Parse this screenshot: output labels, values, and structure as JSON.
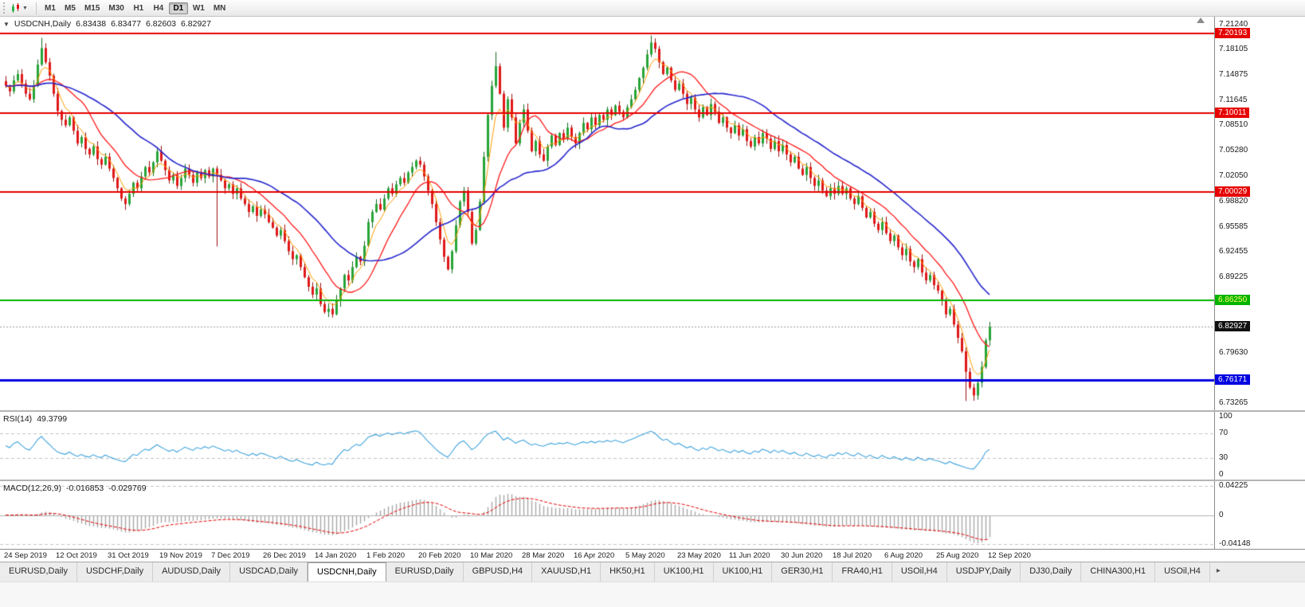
{
  "toolbar": {
    "timeframes": [
      {
        "label": "M1",
        "active": false
      },
      {
        "label": "M5",
        "active": false
      },
      {
        "label": "M15",
        "active": false
      },
      {
        "label": "M30",
        "active": false
      },
      {
        "label": "H1",
        "active": false
      },
      {
        "label": "H4",
        "active": false
      },
      {
        "label": "D1",
        "active": true
      },
      {
        "label": "W1",
        "active": false
      },
      {
        "label": "MN",
        "active": false
      }
    ]
  },
  "chart_header": {
    "symbol": "USDCNH,Daily",
    "open": "6.83438",
    "high": "6.83477",
    "low": "6.82603",
    "close": "6.82927"
  },
  "price_axis_labels": [
    "7.21240",
    "7.18105",
    "7.14875",
    "7.11645",
    "7.08510",
    "7.05280",
    "7.02050",
    "6.98820",
    "6.95585",
    "6.92455",
    "6.89225",
    "6.85995",
    "6.82765",
    "6.79630",
    "6.76400",
    "6.73265"
  ],
  "price_badges": [
    {
      "text": "7.20193",
      "price": 7.20193,
      "bg": "#e60000",
      "fg": "#ffffff"
    },
    {
      "text": "7.10011",
      "price": 7.10011,
      "bg": "#e60000",
      "fg": "#ffffff"
    },
    {
      "text": "7.00029",
      "price": 7.00029,
      "bg": "#e60000",
      "fg": "#ffffff"
    },
    {
      "text": "6.86250",
      "price": 6.8625,
      "bg": "#00b400",
      "fg": "#ffff66"
    },
    {
      "text": "6.82927",
      "price": 6.82927,
      "bg": "#111111",
      "fg": "#ffffff"
    },
    {
      "text": "6.76171",
      "price": 6.76171,
      "bg": "#0000e0",
      "fg": "#ffffff"
    }
  ],
  "chart_data": {
    "type": "candlestick",
    "title": "USDCNH,Daily",
    "symbol": "USDCNH",
    "timeframe": "Daily",
    "ylim": [
      6.7232,
      7.2228
    ],
    "x_tick_labels": [
      "24 Sep 2019",
      "12 Oct 2019",
      "31 Oct 2019",
      "19 Nov 2019",
      "7 Dec 2019",
      "26 Dec 2019",
      "14 Jan 2020",
      "1 Feb 2020",
      "20 Feb 2020",
      "10 Mar 2020",
      "28 Mar 2020",
      "16 Apr 2020",
      "5 May 2020",
      "23 May 2020",
      "11 Jun 2020",
      "30 Jun 2020",
      "18 Jul 2020",
      "6 Aug 2020",
      "25 Aug 2020",
      "12 Sep 2020"
    ],
    "closes": [
      7.135,
      7.128,
      7.142,
      7.15,
      7.138,
      7.125,
      7.118,
      7.135,
      7.162,
      7.183,
      7.165,
      7.148,
      7.125,
      7.103,
      7.092,
      7.085,
      7.095,
      7.078,
      7.062,
      7.07,
      7.055,
      7.048,
      7.058,
      7.042,
      7.035,
      7.045,
      7.03,
      7.018,
      7.005,
      6.992,
      6.985,
      6.998,
      7.012,
      7.005,
      7.02,
      7.032,
      7.025,
      7.038,
      7.052,
      7.04,
      7.028,
      7.015,
      7.022,
      7.008,
      7.018,
      7.03,
      7.022,
      7.012,
      7.025,
      7.018,
      7.028,
      7.02,
      7.03,
      7.022,
      7.015,
      7.005,
      7.01,
      6.998,
      7.005,
      6.992,
      6.985,
      6.975,
      6.982,
      6.97,
      6.978,
      6.972,
      6.962,
      6.955,
      6.945,
      6.952,
      6.938,
      6.925,
      6.915,
      6.92,
      6.905,
      6.892,
      6.88,
      6.87,
      6.878,
      6.858,
      6.848,
      6.852,
      6.845,
      6.862,
      6.878,
      6.895,
      6.888,
      6.905,
      6.918,
      6.912,
      6.932,
      6.962,
      6.975,
      6.985,
      6.978,
      6.992,
      7.005,
      6.998,
      7.01,
      7.018,
      7.012,
      7.025,
      7.032,
      7.04,
      7.035,
      7.02,
      7.002,
      6.985,
      6.962,
      6.94,
      6.918,
      6.902,
      6.925,
      6.958,
      6.988,
      7.002,
      6.975,
      6.935,
      6.952,
      6.988,
      7.045,
      7.098,
      7.135,
      7.16,
      7.125,
      7.082,
      7.118,
      7.095,
      7.062,
      7.088,
      7.105,
      7.078,
      7.052,
      7.065,
      7.048,
      7.04,
      7.058,
      7.072,
      7.06,
      7.075,
      7.068,
      7.082,
      7.07,
      7.062,
      7.075,
      7.088,
      7.08,
      7.095,
      7.085,
      7.098,
      7.092,
      7.105,
      7.098,
      7.11,
      7.102,
      7.095,
      7.108,
      7.118,
      7.13,
      7.145,
      7.158,
      7.175,
      7.19,
      7.182,
      7.165,
      7.15,
      7.158,
      7.142,
      7.13,
      7.138,
      7.125,
      7.112,
      7.12,
      7.105,
      7.095,
      7.108,
      7.098,
      7.112,
      7.102,
      7.088,
      7.095,
      7.082,
      7.075,
      7.085,
      7.072,
      7.08,
      7.065,
      7.058,
      7.07,
      7.062,
      7.075,
      7.068,
      7.055,
      7.065,
      7.052,
      7.06,
      7.048,
      7.038,
      7.045,
      7.03,
      7.022,
      7.032,
      7.018,
      7.008,
      7.015,
      7.002,
      6.995,
      7.005,
      6.998,
      7.008,
      6.998,
      7.005,
      6.992,
      6.985,
      6.995,
      6.98,
      6.968,
      6.975,
      6.96,
      6.952,
      6.962,
      6.948,
      6.938,
      6.945,
      6.93,
      6.92,
      6.928,
      6.912,
      6.905,
      6.915,
      6.898,
      6.888,
      6.895,
      6.882,
      6.875,
      6.862,
      6.845,
      6.852,
      6.832,
      6.815,
      6.798,
      6.772,
      6.752,
      6.742,
      6.758,
      6.778,
      6.812,
      6.829
    ],
    "wick_overrides": [
      {
        "i": 9,
        "high": 7.196
      },
      {
        "i": 53,
        "low": 6.931
      },
      {
        "i": 123,
        "high": 7.178
      },
      {
        "i": 162,
        "high": 7.199
      },
      {
        "i": 241,
        "low": 6.735
      }
    ],
    "horizontal_lines": [
      {
        "price": 7.20193,
        "color": "#e60000",
        "width": 2
      },
      {
        "price": 7.10011,
        "color": "#e60000",
        "width": 2
      },
      {
        "price": 7.00029,
        "color": "#e60000",
        "width": 2
      },
      {
        "price": 6.8625,
        "color": "#00b400",
        "width": 2
      },
      {
        "price": 6.76171,
        "color": "#0000e0",
        "width": 3
      }
    ],
    "current_price": 6.82927,
    "up_color": "#27a437",
    "up_dark": "#156b22",
    "down_color": "#e01818",
    "down_dark": "#9c0f0f",
    "moving_averages": [
      {
        "type": "ema",
        "period": 5,
        "color": "#ff9c00",
        "width": 1
      },
      {
        "type": "sma",
        "period": 13,
        "color": "#ff1a1a",
        "width": 1.3
      },
      {
        "type": "sma",
        "period": 30,
        "color": "#2626cc",
        "width": 1.6
      }
    ],
    "indicators": {
      "rsi": {
        "label": "RSI(14)",
        "value": "49.3799",
        "period": 14,
        "levels": [
          70,
          30
        ],
        "axis_labels": [
          "100",
          "70",
          "30",
          "0"
        ],
        "color": "#3fa3dc"
      },
      "macd": {
        "label": "MACD(12,26,9)",
        "macd_value": "-0.016853",
        "signal_value": "-0.029769",
        "axis_labels": [
          "0.04225",
          "0",
          "-0.04148"
        ],
        "histogram_color": "#a8a8a8",
        "signal_color": "#e60000"
      }
    }
  },
  "tabs": [
    {
      "label": "EURUSD,Daily",
      "active": false
    },
    {
      "label": "USDCHF,Daily",
      "active": false
    },
    {
      "label": "AUDUSD,Daily",
      "active": false
    },
    {
      "label": "USDCAD,Daily",
      "active": false
    },
    {
      "label": "USDCNH,Daily",
      "active": true
    },
    {
      "label": "EURUSD,Daily",
      "active": false
    },
    {
      "label": "GBPUSD,H4",
      "active": false
    },
    {
      "label": "XAUUSD,H1",
      "active": false
    },
    {
      "label": "HK50,H1",
      "active": false
    },
    {
      "label": "UK100,H1",
      "active": false
    },
    {
      "label": "UK100,H1",
      "active": false
    },
    {
      "label": "GER30,H1",
      "active": false
    },
    {
      "label": "FRA40,H1",
      "active": false
    },
    {
      "label": "USOil,H4",
      "active": false
    },
    {
      "label": "USDJPY,Daily",
      "active": false
    },
    {
      "label": "DJ30,Daily",
      "active": false
    },
    {
      "label": "CHINA300,H1",
      "active": false
    },
    {
      "label": "USOil,H4",
      "active": false
    }
  ],
  "tab_scroll_right": "▸"
}
